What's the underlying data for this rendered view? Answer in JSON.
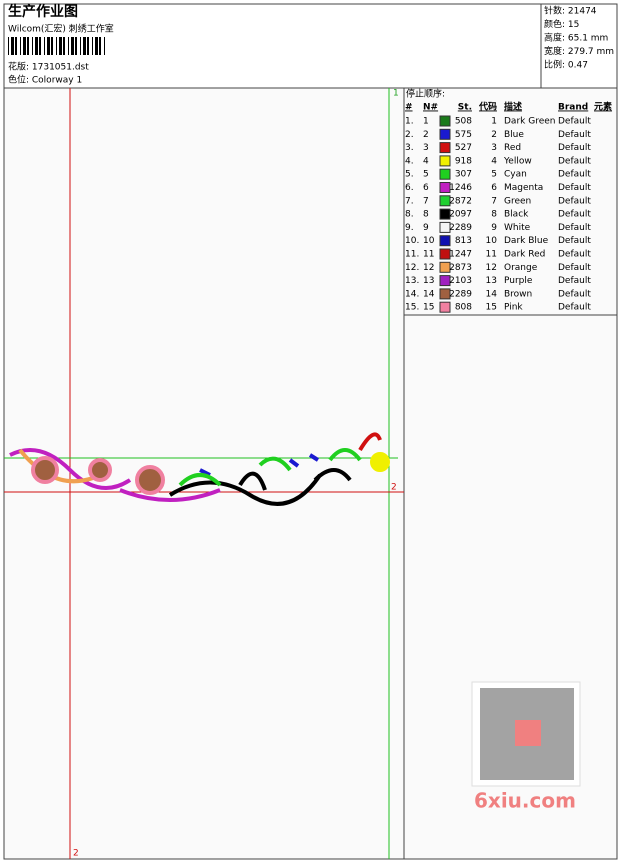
{
  "header": {
    "title": "生产作业图",
    "subtitle": "Wilcom(汇宏) 刺绣工作室",
    "design": "花版: 1731051.dst",
    "colorway": "色位: Colorway 1"
  },
  "info": [
    "针数: 21474",
    "颜色: 15",
    "高度: 65.1 mm",
    "宽度: 279.7 mm",
    "比例: 0.47"
  ],
  "stop_sequence": {
    "title": "停止顺序:",
    "columns": [
      "#",
      "N#",
      "St.",
      "代码",
      "描述",
      "Brand",
      "元素"
    ],
    "rows": [
      [
        "1.",
        "1",
        "#1a7a1a",
        "508",
        "1",
        "Dark Green",
        "Default"
      ],
      [
        "2.",
        "2",
        "#1a1ad0",
        "575",
        "2",
        "Blue",
        "Default"
      ],
      [
        "3.",
        "3",
        "#d01010",
        "527",
        "3",
        "Red",
        "Default"
      ],
      [
        "4.",
        "4",
        "#f0f000",
        "918",
        "4",
        "Yellow",
        "Default"
      ],
      [
        "5.",
        "5",
        "#20d020",
        "307",
        "5",
        "Cyan",
        "Default"
      ],
      [
        "6.",
        "6",
        "#c020c0",
        "1246",
        "6",
        "Magenta",
        "Default"
      ],
      [
        "7.",
        "7",
        "#20d030",
        "2872",
        "7",
        "Green",
        "Default"
      ],
      [
        "8.",
        "8",
        "#000000",
        "2097",
        "8",
        "Black",
        "Default"
      ],
      [
        "9.",
        "9",
        "#f4f4f4",
        "2289",
        "9",
        "White",
        "Default"
      ],
      [
        "10.",
        "10",
        "#1010b0",
        "813",
        "10",
        "Dark Blue",
        "Default"
      ],
      [
        "11.",
        "11",
        "#c01010",
        "1247",
        "11",
        "Dark Red",
        "Default"
      ],
      [
        "12.",
        "12",
        "#f0a050",
        "2873",
        "12",
        "Orange",
        "Default"
      ],
      [
        "13.",
        "13",
        "#a020c0",
        "2103",
        "13",
        "Purple",
        "Default"
      ],
      [
        "14.",
        "14",
        "#a06040",
        "2289",
        "14",
        "Brown",
        "Default"
      ],
      [
        "15.",
        "15",
        "#f080a0",
        "808",
        "15",
        "Pink",
        "Default"
      ]
    ]
  },
  "markers": [
    "1",
    "2",
    "2"
  ],
  "watermark": "6xiu.com"
}
